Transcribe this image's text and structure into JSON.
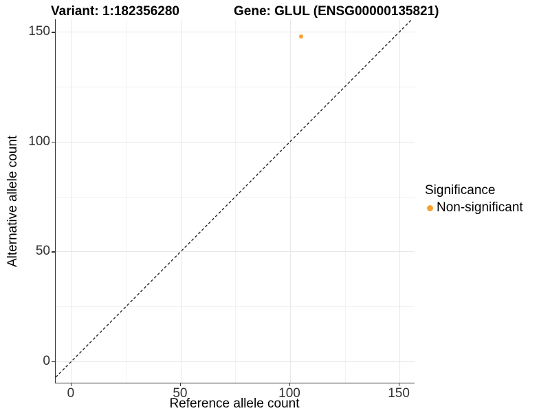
{
  "titles": {
    "left": "Variant: 1:182356280",
    "right": "Gene: GLUL (ENSG00000135821)"
  },
  "chart_data": {
    "type": "scatter",
    "title": "Variant: 1:182356280   Gene: GLUL (ENSG00000135821)",
    "xlabel": "Reference allele count",
    "ylabel": "Alternative allele count",
    "x_ticks": [
      0,
      50,
      100,
      150
    ],
    "y_ticks": [
      0,
      50,
      100,
      150
    ],
    "x_minor_gridlines": [
      25,
      75,
      125
    ],
    "y_minor_gridlines": [
      25,
      75,
      125
    ],
    "xlim": [
      -7.2,
      156.9
    ],
    "ylim": [
      -9.7,
      155.7
    ],
    "grid": true,
    "series": [
      {
        "name": "Non-significant",
        "color": "#F9A232",
        "points": [
          {
            "x": 105,
            "y": 148
          }
        ]
      }
    ],
    "reference_line": {
      "type": "identity",
      "style": "dashed",
      "color": "#1a1a1a",
      "note": "y = x dashed diagonal"
    },
    "legend": {
      "title": "Significance",
      "position": "right",
      "items": [
        {
          "label": "Non-significant",
          "color": "#F9A232"
        }
      ]
    }
  },
  "colors": {
    "background": "#ffffff",
    "axis_line": "#333333",
    "tick_label": "#303030",
    "grid_major": "#e7e7e7",
    "grid_minor": "#f2f2f2",
    "point_orange": "#F9A232"
  }
}
